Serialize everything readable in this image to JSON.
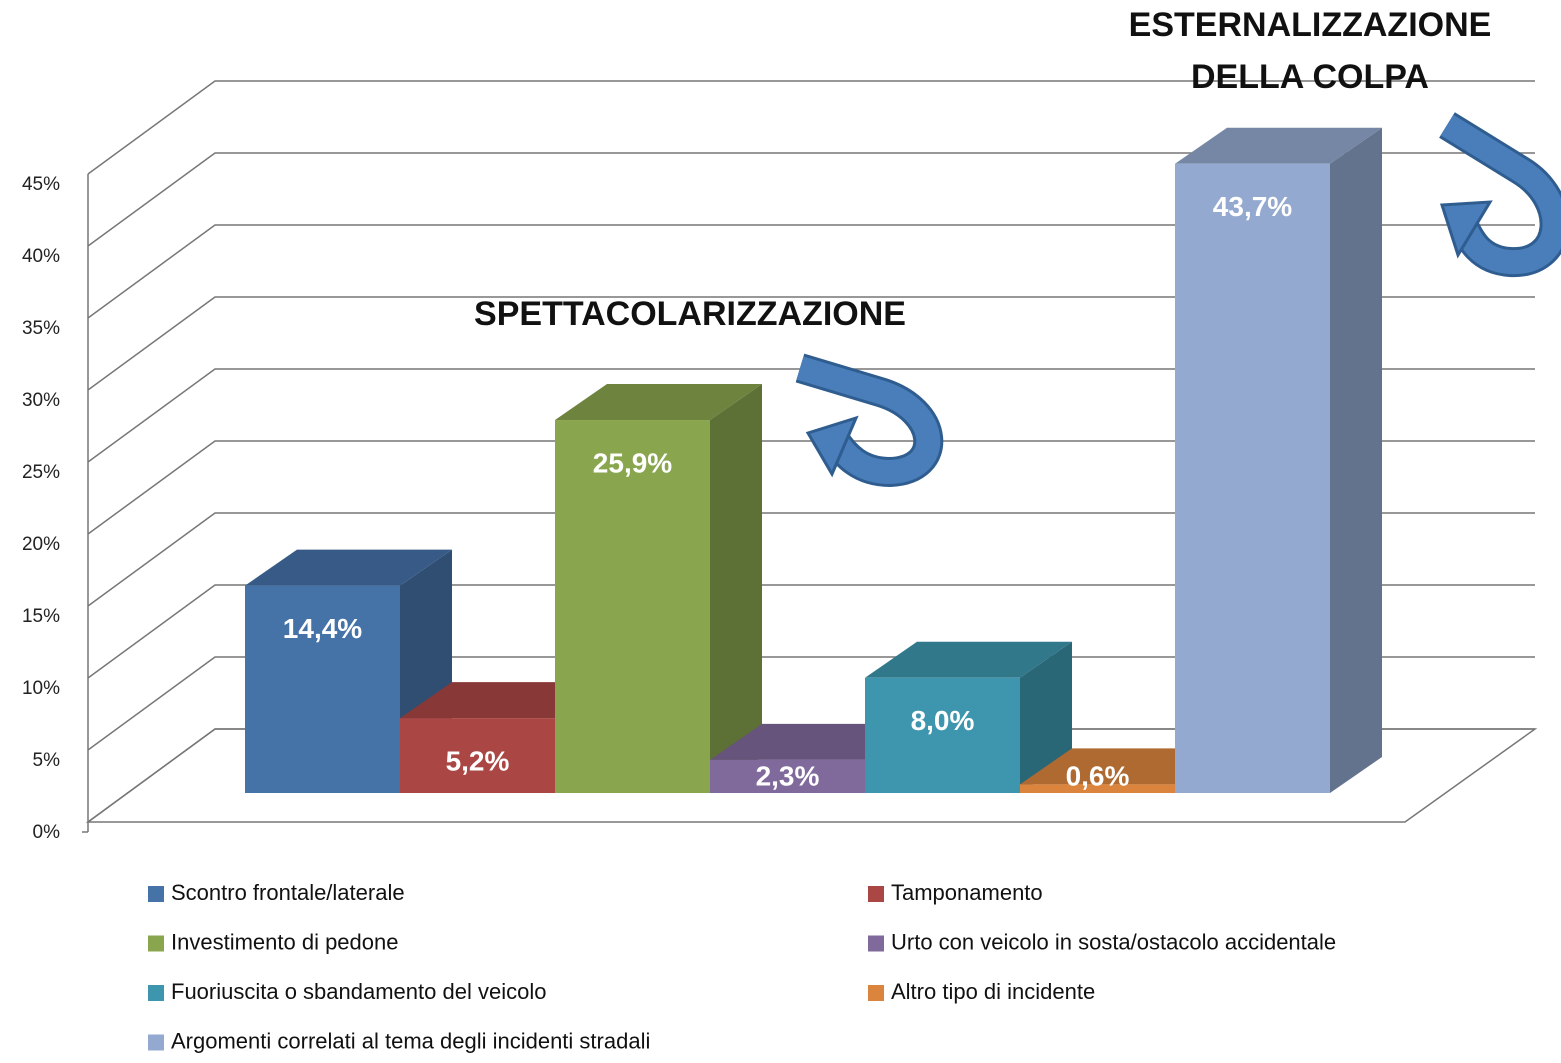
{
  "chart_data": {
    "type": "bar3d",
    "ylim": [
      0,
      45
    ],
    "yticks": [
      {
        "value": 0,
        "label": "0%"
      },
      {
        "value": 5,
        "label": "5%"
      },
      {
        "value": 10,
        "label": "10%"
      },
      {
        "value": 15,
        "label": "15%"
      },
      {
        "value": 20,
        "label": "20%"
      },
      {
        "value": 25,
        "label": "25%"
      },
      {
        "value": 30,
        "label": "30%"
      },
      {
        "value": 35,
        "label": "35%"
      },
      {
        "value": 40,
        "label": "40%"
      },
      {
        "value": 45,
        "label": "45%"
      }
    ],
    "grid": true,
    "legend": "bottom",
    "series": [
      {
        "name": "Scontro frontale/laterale",
        "color": "#4572a7",
        "values": [
          14.4
        ],
        "value_labels": [
          "14,4%"
        ]
      },
      {
        "name": "Tamponamento",
        "color": "#aa4643",
        "values": [
          5.2
        ],
        "value_labels": [
          "5,2%"
        ]
      },
      {
        "name": "Investimento di pedone",
        "color": "#89a54e",
        "values": [
          25.9
        ],
        "value_labels": [
          "25,9%"
        ]
      },
      {
        "name": "Urto con veicolo in sosta/ostacolo accidentale",
        "color": "#80699b",
        "values": [
          2.3
        ],
        "value_labels": [
          "2,3%"
        ]
      },
      {
        "name": "Fuoriuscita o sbandamento del veicolo",
        "color": "#3d96ae",
        "values": [
          8.0
        ],
        "value_labels": [
          "8,0%"
        ]
      },
      {
        "name": "Altro tipo di incidente",
        "color": "#db843d",
        "values": [
          0.6
        ],
        "value_labels": [
          "0,6%"
        ]
      },
      {
        "name": "Argomenti correlati al tema degli incidenti stradali",
        "color": "#93a9cf",
        "values": [
          43.7
        ],
        "value_labels": [
          "43,7%"
        ]
      }
    ],
    "annotations": [
      {
        "lines": [
          "SPETTACOLARIZZAZIONE"
        ]
      },
      {
        "lines": [
          "ESTERNALIZZAZIONE",
          "DELLA COLPA"
        ]
      }
    ]
  }
}
